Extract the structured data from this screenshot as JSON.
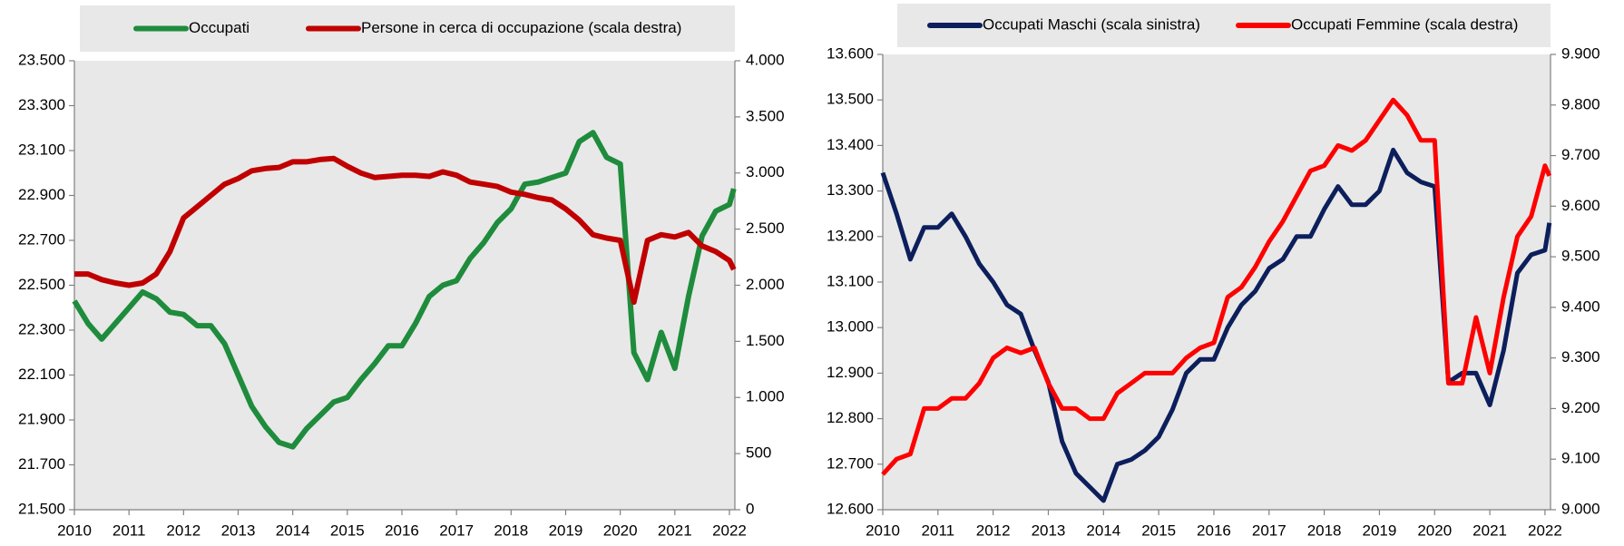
{
  "chart_data": [
    {
      "type": "line",
      "x": [
        2010,
        2010.25,
        2010.5,
        2010.75,
        2011,
        2011.25,
        2011.5,
        2011.75,
        2012,
        2012.25,
        2012.5,
        2012.75,
        2013,
        2013.25,
        2013.5,
        2013.75,
        2014,
        2014.25,
        2014.5,
        2014.75,
        2015,
        2015.25,
        2015.5,
        2015.75,
        2016,
        2016.25,
        2016.5,
        2016.75,
        2017,
        2017.25,
        2017.5,
        2017.75,
        2018,
        2018.25,
        2018.5,
        2018.75,
        2019,
        2019.25,
        2019.5,
        2019.75,
        2020,
        2020.25,
        2020.5,
        2020.75,
        2021,
        2021.25,
        2021.5,
        2021.75,
        2022,
        2022.08
      ],
      "series": [
        {
          "name": "Occupati",
          "color": "#1e8c3c",
          "values": [
            22430,
            22330,
            22260,
            22330,
            22400,
            22470,
            22440,
            22380,
            22370,
            22320,
            22320,
            22240,
            22100,
            21960,
            21870,
            21800,
            21780,
            21860,
            21920,
            21980,
            22000,
            22080,
            22150,
            22230,
            22230,
            22330,
            22450,
            22500,
            22520,
            22620,
            22690,
            22780,
            22840,
            22950,
            22960,
            22980,
            23000,
            23140,
            23180,
            23070,
            23040,
            22200,
            22080,
            22290,
            22130,
            22450,
            22720,
            22830,
            22860,
            22930
          ]
        },
        {
          "name": "Persone in cerca di occupazione (scala destra)",
          "color": "#c00000",
          "axis": "y2",
          "values": [
            2100,
            2100,
            2050,
            2020,
            2000,
            2020,
            2100,
            2300,
            2600,
            2700,
            2800,
            2900,
            2950,
            3020,
            3040,
            3050,
            3100,
            3100,
            3120,
            3130,
            3060,
            3000,
            2960,
            2970,
            2980,
            2980,
            2970,
            3010,
            2980,
            2920,
            2900,
            2880,
            2830,
            2810,
            2780,
            2760,
            2680,
            2580,
            2450,
            2420,
            2400,
            1850,
            2400,
            2450,
            2430,
            2470,
            2350,
            2300,
            2220,
            2140
          ]
        }
      ],
      "xlim": [
        2010,
        2022.1
      ],
      "xticks": [
        2010,
        2011,
        2012,
        2013,
        2014,
        2015,
        2016,
        2017,
        2018,
        2019,
        2020,
        2021,
        2022
      ],
      "ylim": [
        21500,
        23500
      ],
      "yticks": [
        {
          "value": 21500,
          "label": "21.500"
        },
        {
          "value": 21700,
          "label": "21.700"
        },
        {
          "value": 21900,
          "label": "21.900"
        },
        {
          "value": 22100,
          "label": "22.100"
        },
        {
          "value": 22300,
          "label": "22.300"
        },
        {
          "value": 22500,
          "label": "22.500"
        },
        {
          "value": 22700,
          "label": "22.700"
        },
        {
          "value": 22900,
          "label": "22.900"
        },
        {
          "value": 23100,
          "label": "23.100"
        },
        {
          "value": 23300,
          "label": "23.300"
        },
        {
          "value": 23500,
          "label": "23.500"
        }
      ],
      "y2lim": [
        0,
        4000
      ],
      "y2ticks": [
        0,
        500,
        {
          "value": 1000,
          "label": "1.000"
        },
        {
          "value": 1500,
          "label": "1.500"
        },
        {
          "value": 2000,
          "label": "2.000"
        },
        {
          "value": 2500,
          "label": "2.500"
        },
        {
          "value": 3000,
          "label": "3.000"
        },
        {
          "value": 3500,
          "label": "3.500"
        },
        {
          "value": 4000,
          "label": "4.000"
        }
      ]
    },
    {
      "type": "line",
      "x": [
        2010,
        2010.25,
        2010.5,
        2010.75,
        2011,
        2011.25,
        2011.5,
        2011.75,
        2012,
        2012.25,
        2012.5,
        2012.75,
        2013,
        2013.25,
        2013.5,
        2013.75,
        2014,
        2014.25,
        2014.5,
        2014.75,
        2015,
        2015.25,
        2015.5,
        2015.75,
        2016,
        2016.25,
        2016.5,
        2016.75,
        2017,
        2017.25,
        2017.5,
        2017.75,
        2018,
        2018.25,
        2018.5,
        2018.75,
        2019,
        2019.25,
        2019.5,
        2019.75,
        2020,
        2020.25,
        2020.5,
        2020.75,
        2021,
        2021.25,
        2021.5,
        2021.75,
        2022,
        2022.08
      ],
      "series": [
        {
          "name": "Occupati Maschi (scala sinistra)",
          "color": "#0c1f5c",
          "values": [
            13340,
            13250,
            13150,
            13220,
            13220,
            13250,
            13200,
            13140,
            13100,
            13050,
            13030,
            12950,
            12880,
            12750,
            12680,
            12650,
            12620,
            12700,
            12710,
            12730,
            12760,
            12820,
            12900,
            12930,
            12930,
            13000,
            13050,
            13080,
            13130,
            13150,
            13200,
            13200,
            13260,
            13310,
            13270,
            13270,
            13300,
            13390,
            13340,
            13320,
            13310,
            12880,
            12900,
            12900,
            12830,
            12950,
            13120,
            13160,
            13170,
            13230
          ]
        },
        {
          "name": "Occupati Femmine (scala destra)",
          "color": "#ff0000",
          "axis": "y2",
          "values": [
            9070,
            9100,
            9110,
            9200,
            9200,
            9220,
            9220,
            9250,
            9300,
            9320,
            9310,
            9320,
            9250,
            9200,
            9200,
            9180,
            9180,
            9230,
            9250,
            9270,
            9270,
            9270,
            9300,
            9320,
            9330,
            9420,
            9440,
            9480,
            9530,
            9570,
            9620,
            9670,
            9680,
            9720,
            9710,
            9730,
            9770,
            9810,
            9780,
            9730,
            9730,
            9250,
            9250,
            9380,
            9270,
            9420,
            9540,
            9580,
            9680,
            9660
          ]
        }
      ],
      "xlim": [
        2010,
        2022.1
      ],
      "xticks": [
        2010,
        2011,
        2012,
        2013,
        2014,
        2015,
        2016,
        2017,
        2018,
        2019,
        2020,
        2021,
        2022
      ],
      "ylim": [
        12600,
        13600
      ],
      "yticks": [
        {
          "value": 12600,
          "label": "12.600"
        },
        {
          "value": 12700,
          "label": "12.700"
        },
        {
          "value": 12800,
          "label": "12.800"
        },
        {
          "value": 12900,
          "label": "12.900"
        },
        {
          "value": 13000,
          "label": "13.000"
        },
        {
          "value": 13100,
          "label": "13.100"
        },
        {
          "value": 13200,
          "label": "13.200"
        },
        {
          "value": 13300,
          "label": "13.300"
        },
        {
          "value": 13400,
          "label": "13.400"
        },
        {
          "value": 13500,
          "label": "13.500"
        },
        {
          "value": 13600,
          "label": "13.600"
        }
      ],
      "y2lim": [
        9000,
        9900
      ],
      "y2ticks": [
        {
          "value": 9000,
          "label": "9.000"
        },
        {
          "value": 9100,
          "label": "9.100"
        },
        {
          "value": 9200,
          "label": "9.200"
        },
        {
          "value": 9300,
          "label": "9.300"
        },
        {
          "value": 9400,
          "label": "9.400"
        },
        {
          "value": 9500,
          "label": "9.500"
        },
        {
          "value": 9600,
          "label": "9.600"
        },
        {
          "value": 9700,
          "label": "9.700"
        },
        {
          "value": 9800,
          "label": "9.800"
        },
        {
          "value": 9900,
          "label": "9.900"
        }
      ]
    }
  ]
}
